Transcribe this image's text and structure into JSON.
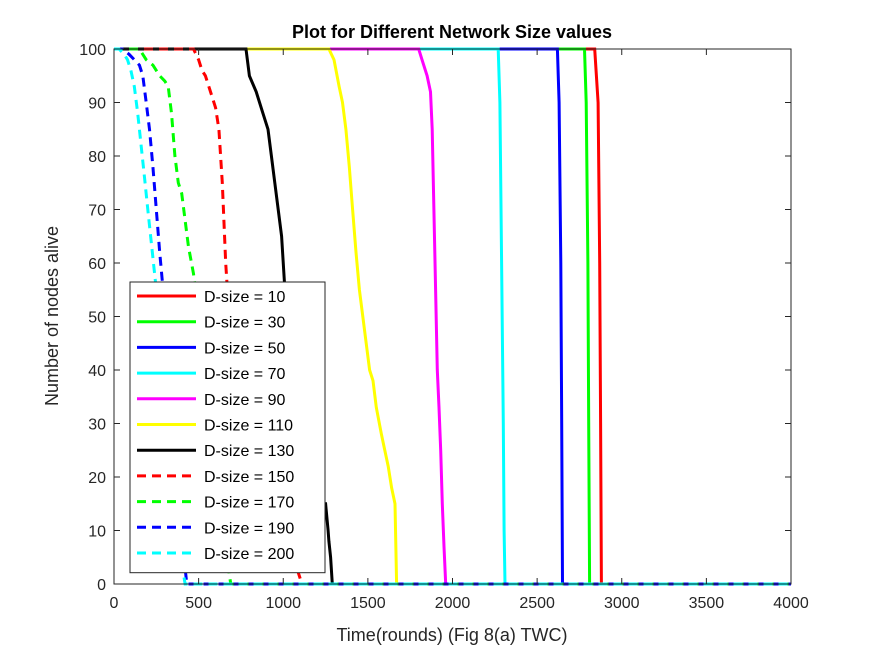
{
  "chart_data": {
    "type": "line",
    "title": "Plot for Different Network Size values",
    "xlabel": "Time(rounds) (Fig 8(a) TWC)",
    "ylabel": "Number of nodes alive",
    "xlim": [
      0,
      4000
    ],
    "ylim": [
      0,
      100
    ],
    "xticks": [
      0,
      500,
      1000,
      1500,
      2000,
      2500,
      3000,
      3500,
      4000
    ],
    "yticks": [
      0,
      10,
      20,
      30,
      40,
      50,
      60,
      70,
      80,
      90,
      100
    ],
    "xtick_labels": [
      "0",
      "500",
      "1000",
      "1500",
      "2000",
      "2500",
      "3000",
      "3500",
      "4000"
    ],
    "ytick_labels": [
      "0",
      "10",
      "20",
      "30",
      "40",
      "50",
      "60",
      "70",
      "80",
      "90",
      "100"
    ],
    "grid": false,
    "legend_position": "bottom-left",
    "series": [
      {
        "name": "D-size = 10",
        "color": "#ff0000",
        "dash": "solid",
        "x": [
          0,
          2840,
          2860,
          2870,
          2875,
          2880,
          4000
        ],
        "y": [
          100,
          100,
          90,
          60,
          30,
          0,
          0
        ]
      },
      {
        "name": "D-size = 30",
        "color": "#00ff00",
        "dash": "solid",
        "x": [
          0,
          2780,
          2790,
          2800,
          2805,
          2810,
          4000
        ],
        "y": [
          100,
          100,
          90,
          60,
          30,
          0,
          0
        ]
      },
      {
        "name": "D-size = 50",
        "color": "#0000ff",
        "dash": "solid",
        "x": [
          0,
          2620,
          2630,
          2640,
          2645,
          2650,
          4000
        ],
        "y": [
          100,
          100,
          90,
          60,
          30,
          0,
          0
        ]
      },
      {
        "name": "D-size = 70",
        "color": "#00ffff",
        "dash": "solid",
        "x": [
          0,
          2270,
          2280,
          2290,
          2300,
          2305,
          2310,
          4000
        ],
        "y": [
          100,
          100,
          90,
          60,
          30,
          10,
          0,
          0
        ]
      },
      {
        "name": "D-size = 90",
        "color": "#ff00ff",
        "dash": "solid",
        "x": [
          0,
          1800,
          1820,
          1850,
          1870,
          1880,
          1890,
          1900,
          1910,
          1920,
          1930,
          1940,
          1950,
          1960,
          4000
        ],
        "y": [
          100,
          100,
          98,
          95,
          92,
          85,
          70,
          55,
          40,
          33,
          25,
          15,
          7,
          0,
          0
        ]
      },
      {
        "name": "D-size = 110",
        "color": "#ffff00",
        "dash": "solid",
        "x": [
          0,
          1270,
          1300,
          1330,
          1350,
          1370,
          1390,
          1410,
          1430,
          1450,
          1470,
          1490,
          1510,
          1530,
          1550,
          1580,
          1600,
          1620,
          1640,
          1660,
          1670,
          4000
        ],
        "y": [
          100,
          100,
          98,
          93,
          90,
          85,
          78,
          70,
          62,
          55,
          50,
          45,
          40,
          38,
          33,
          28,
          25,
          22,
          18,
          15,
          0,
          0
        ]
      },
      {
        "name": "D-size = 130",
        "color": "#000000",
        "dash": "solid",
        "x": [
          0,
          780,
          800,
          840,
          880,
          910,
          930,
          950,
          970,
          990,
          1010,
          1030,
          1050,
          1080,
          1110,
          1150,
          1190,
          1220,
          1250,
          1265,
          1270,
          1280,
          1290,
          4000
        ],
        "y": [
          100,
          100,
          95,
          92,
          88,
          85,
          80,
          75,
          70,
          65,
          55,
          45,
          38,
          30,
          25,
          22,
          18,
          15,
          15,
          10,
          8,
          5,
          0,
          0
        ]
      },
      {
        "name": "D-size = 150",
        "color": "#ff0000",
        "dash": "dashed",
        "x": [
          0,
          470,
          500,
          520,
          540,
          560,
          580,
          600,
          620,
          640,
          660,
          680,
          700,
          730,
          760,
          800,
          850,
          900,
          950,
          1000,
          1050,
          1080,
          1100,
          1120,
          4000
        ],
        "y": [
          100,
          100,
          98,
          96,
          95,
          93,
          91,
          89,
          85,
          75,
          60,
          50,
          45,
          40,
          35,
          30,
          25,
          20,
          15,
          10,
          6,
          3,
          1,
          0,
          0
        ]
      },
      {
        "name": "D-size = 170",
        "color": "#00ff00",
        "dash": "dashed",
        "x": [
          0,
          150,
          190,
          230,
          270,
          300,
          320,
          340,
          360,
          380,
          400,
          420,
          440,
          470,
          500,
          540,
          580,
          620,
          650,
          670,
          680,
          690,
          4000
        ],
        "y": [
          100,
          100,
          98,
          97,
          95,
          94,
          93,
          88,
          80,
          75,
          73,
          68,
          63,
          58,
          50,
          40,
          30,
          20,
          10,
          5,
          2,
          0,
          0
        ]
      },
      {
        "name": "D-size = 190",
        "color": "#0000ff",
        "dash": "dashed",
        "x": [
          0,
          50,
          90,
          120,
          150,
          170,
          190,
          210,
          230,
          250,
          270,
          290,
          310,
          330,
          350,
          370,
          390,
          410,
          420,
          430,
          4000
        ],
        "y": [
          100,
          100,
          99,
          98,
          97,
          95,
          90,
          85,
          78,
          70,
          62,
          55,
          48,
          40,
          32,
          25,
          15,
          8,
          3,
          0,
          0
        ]
      },
      {
        "name": "D-size = 200",
        "color": "#00ffff",
        "dash": "dashed",
        "x": [
          0,
          30,
          60,
          80,
          100,
          120,
          140,
          160,
          180,
          200,
          220,
          240,
          260,
          280,
          300,
          320,
          340,
          360,
          380,
          400,
          410,
          420,
          4000
        ],
        "y": [
          100,
          100,
          99,
          98,
          96,
          93,
          88,
          82,
          76,
          70,
          64,
          58,
          52,
          46,
          40,
          34,
          27,
          20,
          12,
          5,
          2,
          0,
          0
        ]
      }
    ]
  }
}
